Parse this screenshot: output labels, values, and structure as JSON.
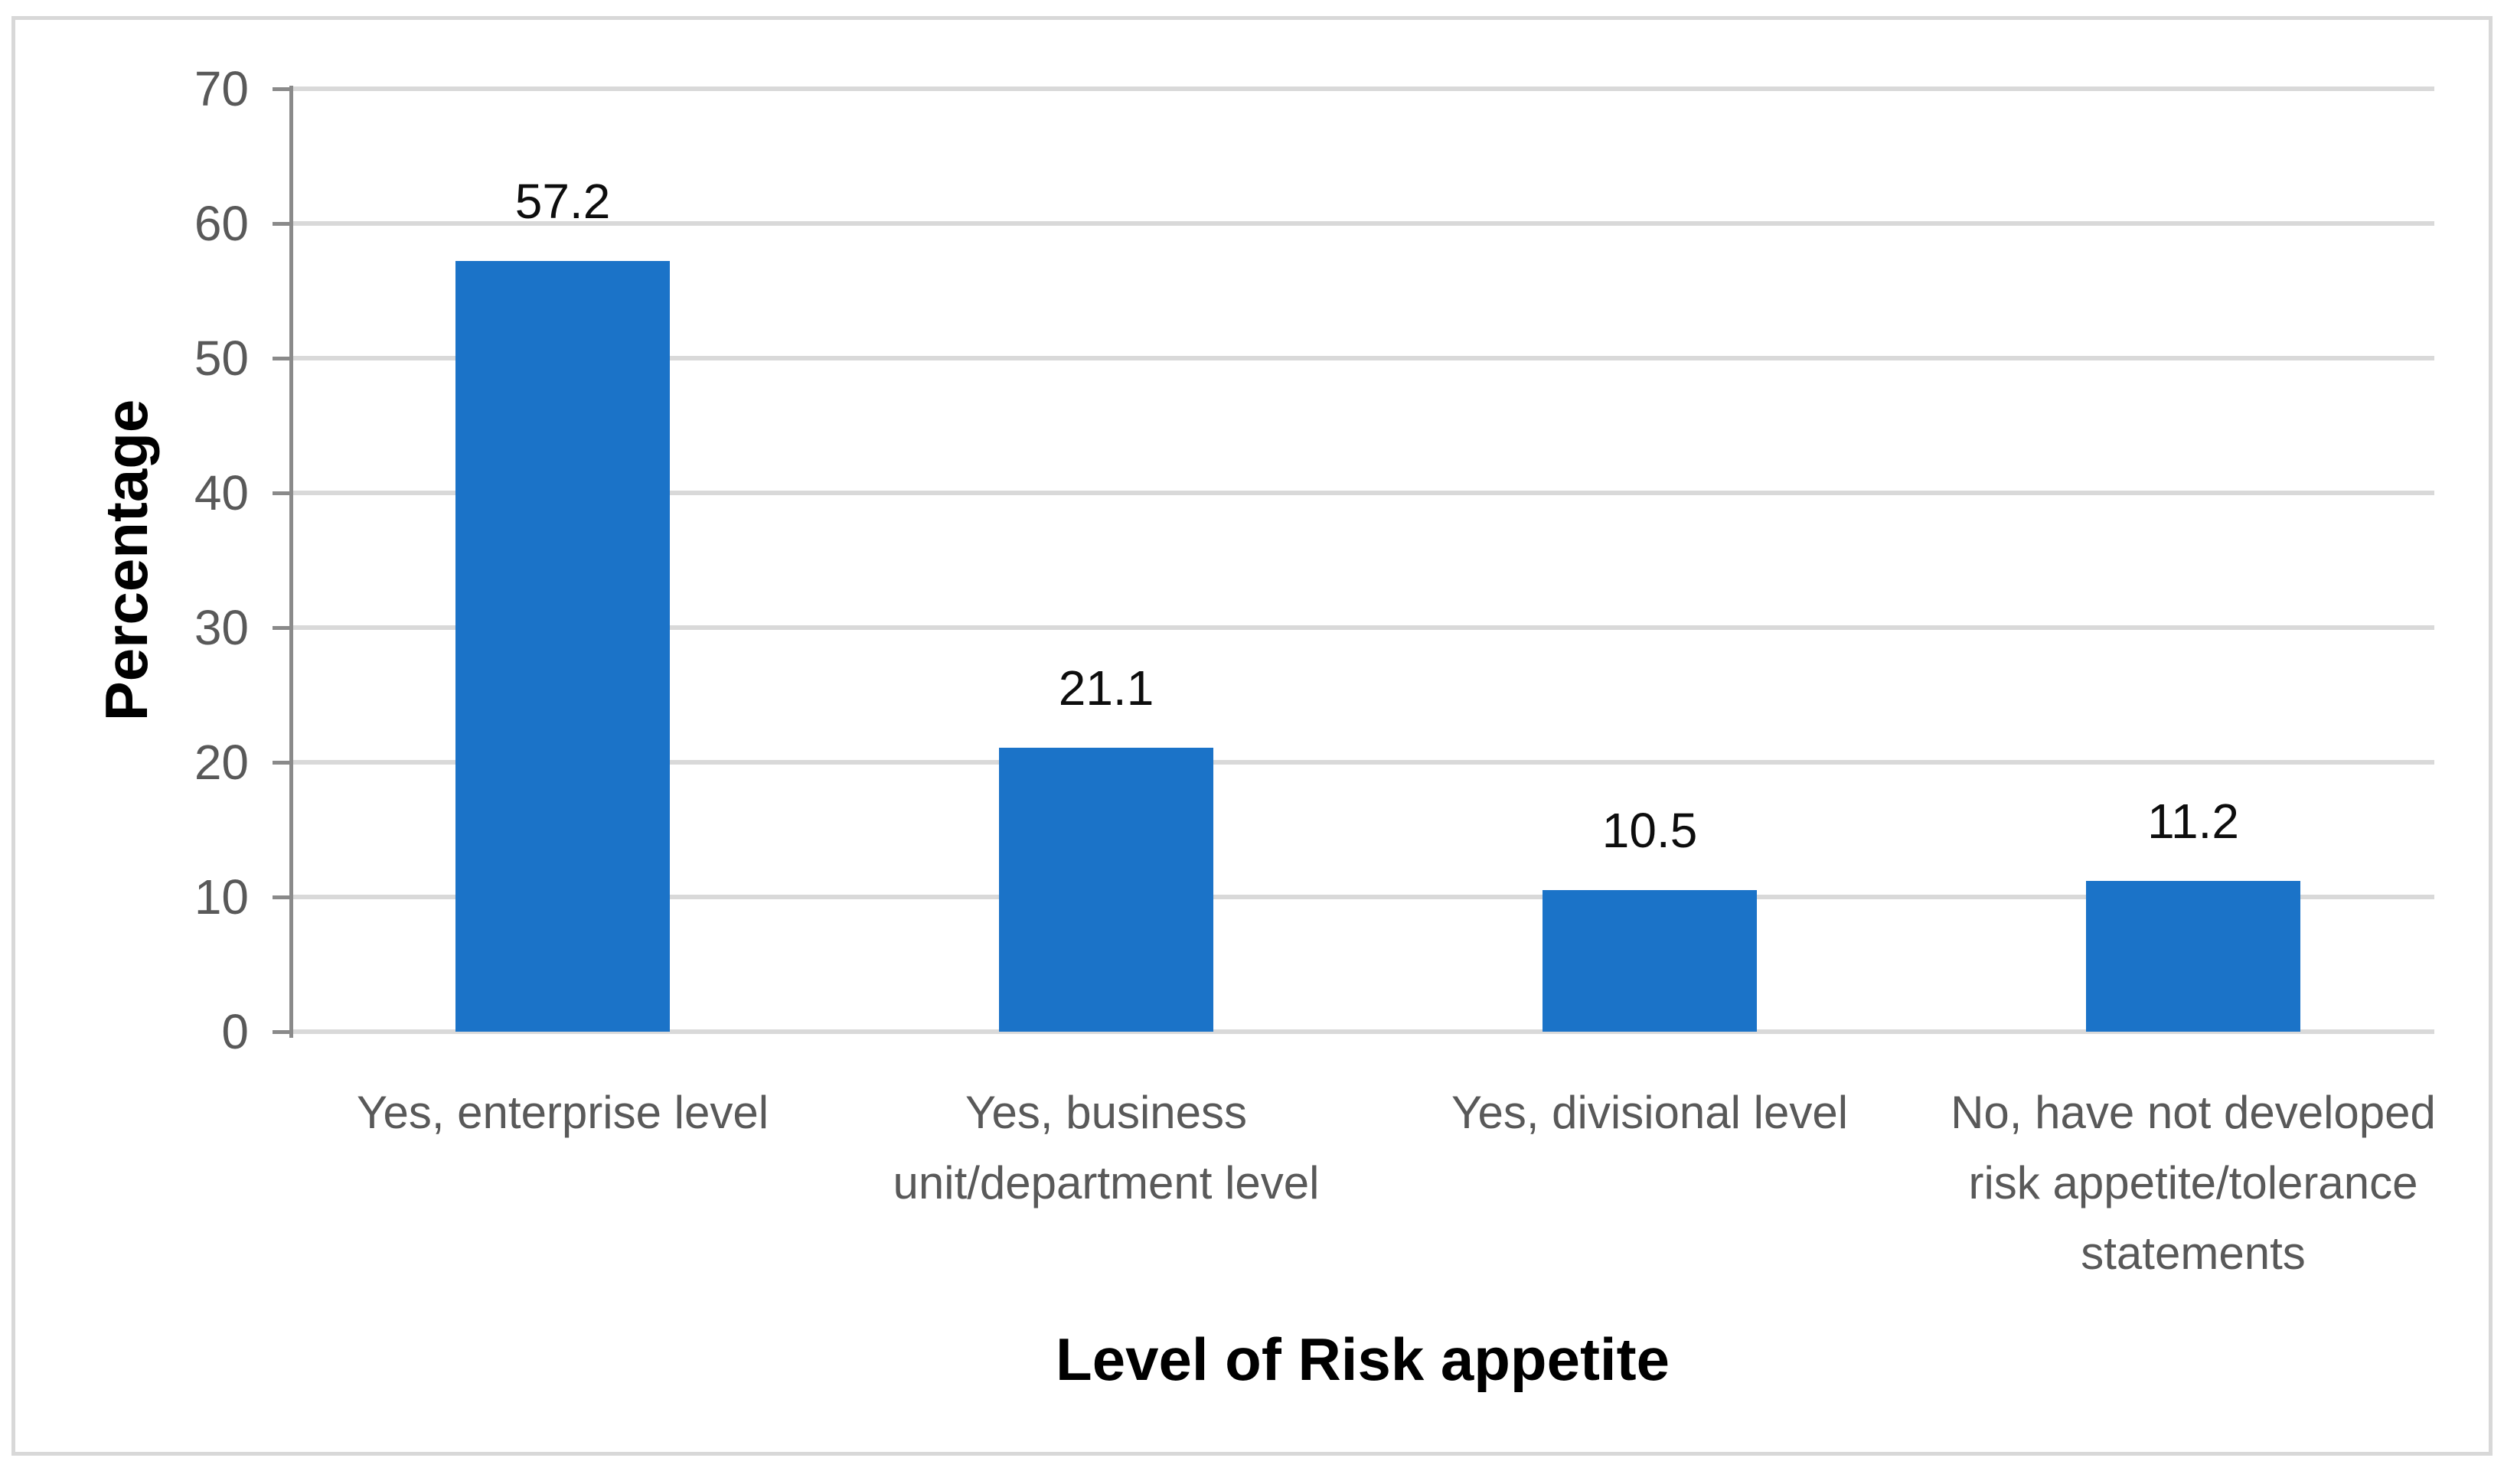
{
  "chart_data": {
    "type": "bar",
    "title": "",
    "ylabel": "Percentage",
    "xlabel": "Level of Risk appetite",
    "categories": [
      "Yes, enterprise level",
      "Yes, business unit/department level",
      "Yes, divisional level",
      "No, have not developed risk appetite/tolerance statements"
    ],
    "category_display_lines": [
      [
        "Yes, enterprise level"
      ],
      [
        "Yes, business",
        "unit/department level"
      ],
      [
        "Yes, divisional level"
      ],
      [
        "No, have not developed",
        "risk appetite/tolerance",
        "statements"
      ]
    ],
    "values": [
      57.2,
      21.1,
      10.5,
      11.2
    ],
    "data_labels": [
      "57.2",
      "21.1",
      "10.5",
      "11.2"
    ],
    "ylim": [
      0,
      70
    ],
    "yticks": [
      0,
      10,
      20,
      30,
      40,
      50,
      60,
      70
    ],
    "grid": "horizontal",
    "legend_position": "none",
    "colors": {
      "bar": "#1b73c8",
      "gridline": "#d9d9d9",
      "axis_line": "#8a8a8a",
      "tick_label": "#595959",
      "category_label": "#595959",
      "data_label": "#0d0d0d",
      "axis_title": "#000000",
      "frame_border": "#d8d8d8",
      "background": "#ffffff"
    }
  }
}
